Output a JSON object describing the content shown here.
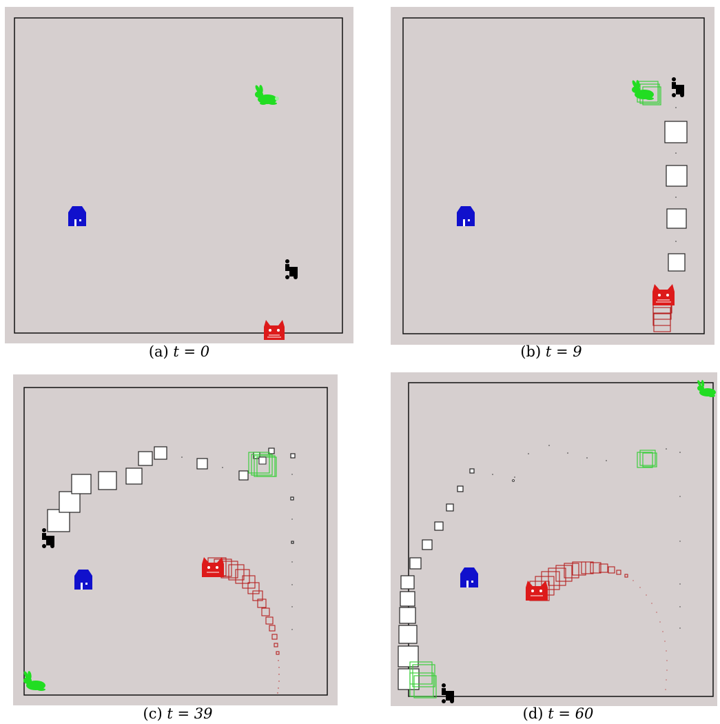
{
  "panels": [
    {
      "label": "(a)",
      "time_text": "t = 0",
      "agents": {
        "rabbit": "rabbit-icon",
        "house": "house-icon",
        "robot": "robot-icon",
        "cat": "cat-icon"
      }
    },
    {
      "label": "(b)",
      "time_text": "t = 9",
      "agents": {
        "rabbit": "rabbit-icon",
        "house": "house-icon",
        "robot": "robot-icon",
        "cat": "cat-icon"
      }
    },
    {
      "label": "(c)",
      "time_text": "t = 39",
      "agents": {
        "rabbit": "rabbit-icon",
        "house": "house-icon",
        "robot": "robot-icon",
        "cat": "cat-icon"
      }
    },
    {
      "label": "(d)",
      "time_text": "t = 60",
      "agents": {
        "rabbit": "rabbit-icon",
        "house": "house-icon",
        "robot": "robot-icon",
        "cat": "cat-icon"
      }
    }
  ],
  "colors": {
    "field": "#d6cfcf",
    "border": "#111111",
    "rabbit": "#22dd22",
    "house": "#1010cc",
    "cat": "#dd1a1a",
    "robot": "#000000",
    "robot_trail": "#222222",
    "cat_trail": "#b52020",
    "rabbit_trail": "#3bcf3b"
  }
}
